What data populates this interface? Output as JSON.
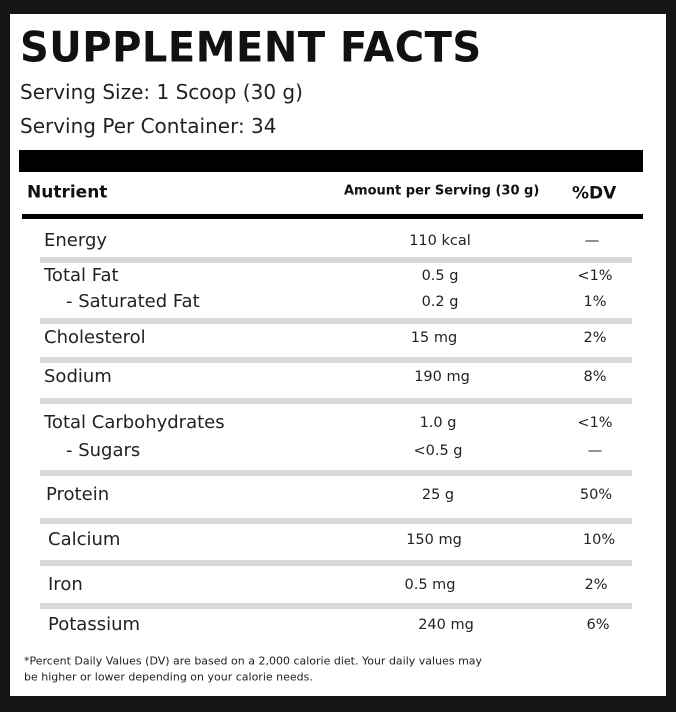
{
  "header": {
    "title": "SUPPLEMENT FACTS",
    "serving_size": "Serving Size: 1 Scoop (30 g)",
    "servings_per_container": "Serving Per Container: 34"
  },
  "table": {
    "columns": [
      "Nutrient",
      "Amount per Serving (30 g)",
      "%DV"
    ],
    "groups": [
      {
        "rows": [
          {
            "name": "Energy",
            "amount": "110 kcal",
            "dv": "—"
          }
        ]
      },
      {
        "rows": [
          {
            "name": "Total Fat",
            "amount": "0.5 g",
            "dv": "<1%"
          },
          {
            "name": "- Saturated Fat",
            "amount": "0.2 g",
            "dv": "1%"
          }
        ]
      },
      {
        "rows": [
          {
            "name": "Cholesterol",
            "amount": "15 mg",
            "dv": "2%"
          }
        ]
      },
      {
        "rows": [
          {
            "name": "Sodium",
            "amount": "190 mg",
            "dv": "8%"
          }
        ]
      },
      {
        "rows": [
          {
            "name": "Total Carbohydrates",
            "amount": "1.0 g",
            "dv": "<1%"
          },
          {
            "name": "- Sugars",
            "amount": "<0.5 g",
            "dv": "—"
          }
        ]
      },
      {
        "rows": [
          {
            "name": "Protein",
            "amount": "25 g",
            "dv": "50%"
          }
        ]
      },
      {
        "rows": [
          {
            "name": "Calcium",
            "amount": "150 mg",
            "dv": "10%"
          }
        ]
      },
      {
        "rows": [
          {
            "name": "Iron",
            "amount": "0.5 mg",
            "dv": "2%"
          }
        ]
      },
      {
        "rows": [
          {
            "name": "Potassium",
            "amount": "240 mg",
            "dv": "6%"
          }
        ]
      }
    ]
  },
  "footnote": [
    "*Percent Daily Values (DV) are based on a 2,000 calorie diet. Your daily values may",
    "be higher or lower depending on your calorie needs."
  ]
}
